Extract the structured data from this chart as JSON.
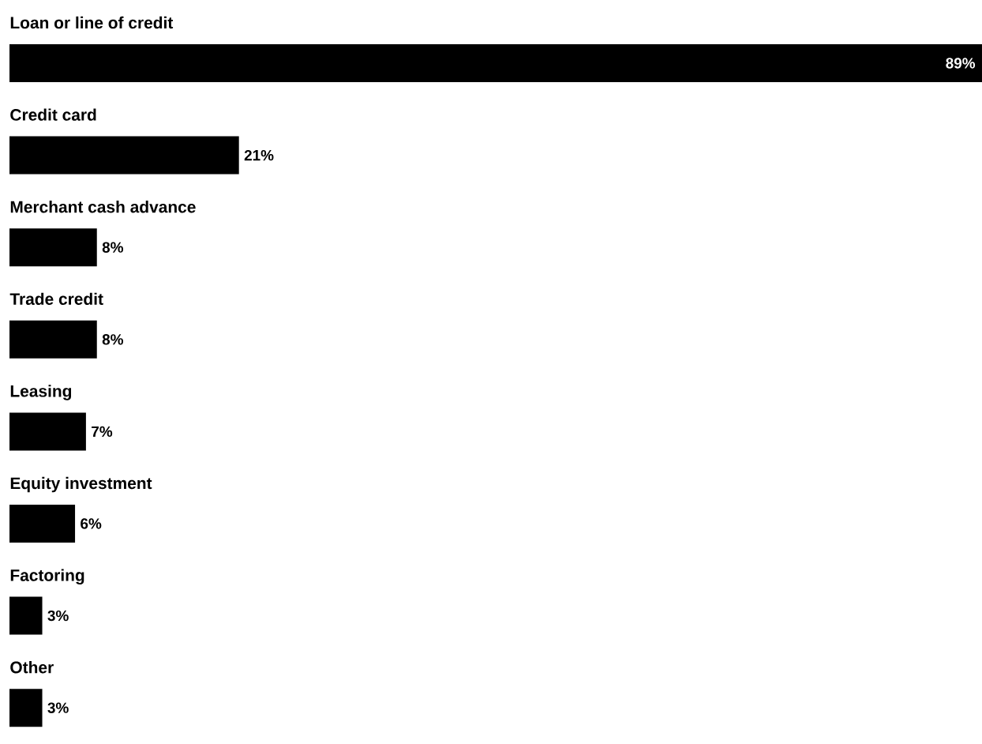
{
  "chart_data": {
    "type": "bar",
    "orientation": "horizontal",
    "categories": [
      "Loan or line of credit",
      "Credit card",
      "Merchant cash advance",
      "Trade credit",
      "Leasing",
      "Equity investment",
      "Factoring",
      "Other"
    ],
    "values": [
      89,
      21,
      8,
      8,
      7,
      6,
      3,
      3
    ],
    "value_labels": [
      "89%",
      "21%",
      "8%",
      "8%",
      "7%",
      "6%",
      "3%",
      "3%"
    ],
    "color": "#000000"
  }
}
